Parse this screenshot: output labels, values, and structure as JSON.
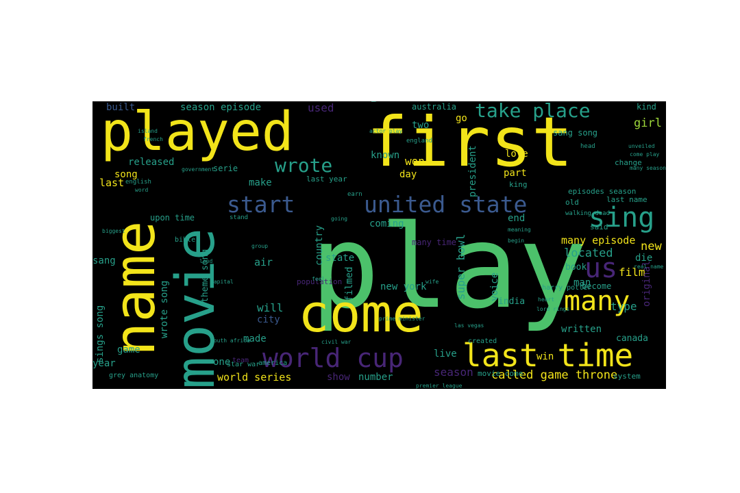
{
  "colors": {
    "background": "#000000",
    "page": "#ffffff",
    "yellow": "#f2e41a",
    "green": "#4cc16b",
    "teal": "#27a08a",
    "blue": "#3b5a8f",
    "purple": "#482677",
    "lime": "#9fd93a"
  },
  "word_cloud": [
    {
      "word": "play",
      "color": "green"
    },
    {
      "word": "first",
      "color": "yellow"
    },
    {
      "word": "played",
      "color": "yellow"
    },
    {
      "word": "name",
      "color": "yellow"
    },
    {
      "word": "movie",
      "color": "teal"
    },
    {
      "word": "come",
      "color": "yellow"
    },
    {
      "word": "last time",
      "color": "yellow"
    },
    {
      "word": "world cup",
      "color": "purple"
    },
    {
      "word": "united state",
      "color": "blue"
    },
    {
      "word": "start",
      "color": "blue"
    },
    {
      "word": "many",
      "color": "yellow"
    },
    {
      "word": "sing",
      "color": "teal"
    },
    {
      "word": "take place",
      "color": "teal"
    },
    {
      "word": "wrote",
      "color": "teal"
    },
    {
      "word": "us",
      "color": "purple"
    },
    {
      "word": "called game throne",
      "color": "yellow"
    },
    {
      "word": "world series",
      "color": "yellow"
    },
    {
      "word": "season episode",
      "color": "teal"
    },
    {
      "word": "built",
      "color": "blue"
    },
    {
      "word": "used",
      "color": "purple"
    },
    {
      "word": "uk",
      "color": "teal"
    },
    {
      "word": "australia",
      "color": "teal"
    },
    {
      "word": "kind",
      "color": "teal"
    },
    {
      "word": "girl",
      "color": "lime"
    },
    {
      "word": "sang song",
      "color": "teal"
    },
    {
      "word": "released",
      "color": "teal"
    },
    {
      "word": "song",
      "color": "yellow"
    },
    {
      "word": "known",
      "color": "teal"
    },
    {
      "word": "won",
      "color": "yellow"
    },
    {
      "word": "two",
      "color": "teal"
    },
    {
      "word": "love",
      "color": "yellow"
    },
    {
      "word": "day",
      "color": "yellow"
    },
    {
      "word": "go",
      "color": "yellow"
    },
    {
      "word": "president",
      "color": "teal"
    },
    {
      "word": "part",
      "color": "yellow"
    },
    {
      "word": "new",
      "color": "yellow"
    },
    {
      "word": "last",
      "color": "yellow"
    },
    {
      "word": "make",
      "color": "teal"
    },
    {
      "word": "last year",
      "color": "teal"
    },
    {
      "word": "upon time",
      "color": "teal"
    },
    {
      "word": "coming",
      "color": "teal"
    },
    {
      "word": "end",
      "color": "teal"
    },
    {
      "word": "old",
      "color": "teal"
    },
    {
      "word": "many episode",
      "color": "yellow"
    },
    {
      "word": "located",
      "color": "teal"
    },
    {
      "word": "die",
      "color": "teal"
    },
    {
      "word": "film",
      "color": "yellow"
    },
    {
      "word": "country",
      "color": "teal"
    },
    {
      "word": "state",
      "color": "teal"
    },
    {
      "word": "super bowl",
      "color": "teal"
    },
    {
      "word": "filmed",
      "color": "teal"
    },
    {
      "word": "new york",
      "color": "teal"
    },
    {
      "word": "air",
      "color": "teal"
    },
    {
      "word": "sang",
      "color": "teal"
    },
    {
      "word": "wrote song",
      "color": "teal"
    },
    {
      "word": "theme song",
      "color": "teal"
    },
    {
      "word": "sings song",
      "color": "teal"
    },
    {
      "word": "will",
      "color": "teal"
    },
    {
      "word": "city",
      "color": "blue"
    },
    {
      "word": "voice",
      "color": "teal"
    },
    {
      "word": "india",
      "color": "teal"
    },
    {
      "word": "original",
      "color": "purple"
    },
    {
      "word": "type",
      "color": "teal"
    },
    {
      "word": "made",
      "color": "teal"
    },
    {
      "word": "written",
      "color": "teal"
    },
    {
      "word": "canada",
      "color": "teal"
    },
    {
      "word": "one",
      "color": "teal"
    },
    {
      "word": "game",
      "color": "teal"
    },
    {
      "word": "year",
      "color": "teal"
    },
    {
      "word": "live",
      "color": "teal"
    },
    {
      "word": "win",
      "color": "yellow"
    },
    {
      "word": "season",
      "color": "purple"
    },
    {
      "word": "number",
      "color": "teal"
    },
    {
      "word": "show",
      "color": "purple"
    },
    {
      "word": "book",
      "color": "teal"
    },
    {
      "word": "man",
      "color": "teal"
    },
    {
      "word": "become",
      "color": "teal"
    },
    {
      "word": "system",
      "color": "teal"
    },
    {
      "word": "grey anatomy",
      "color": "teal"
    },
    {
      "word": "harry potter",
      "color": "teal"
    },
    {
      "word": "population",
      "color": "purple"
    },
    {
      "word": "many time",
      "color": "purple"
    },
    {
      "word": "episodes season",
      "color": "teal"
    },
    {
      "word": "last name",
      "color": "teal"
    },
    {
      "word": "walking dead",
      "color": "teal"
    },
    {
      "word": "said",
      "color": "teal"
    },
    {
      "word": "change",
      "color": "teal"
    },
    {
      "word": "king",
      "color": "teal"
    },
    {
      "word": "serie",
      "color": "teal"
    },
    {
      "word": "star war",
      "color": "teal"
    },
    {
      "word": "america",
      "color": "teal"
    },
    {
      "word": "team",
      "color": "purple"
    },
    {
      "word": "earn",
      "color": "teal"
    },
    {
      "word": "bible",
      "color": "teal"
    },
    {
      "word": "movie come",
      "color": "teal"
    },
    {
      "word": "england",
      "color": "teal"
    },
    {
      "word": "lord rings",
      "color": "teal"
    },
    {
      "word": "las vegas",
      "color": "teal"
    },
    {
      "word": "south africa",
      "color": "teal"
    },
    {
      "word": "civil war",
      "color": "teal"
    },
    {
      "word": "prime minister",
      "color": "teal"
    },
    {
      "word": "premier league",
      "color": "teal"
    },
    {
      "word": "french",
      "color": "teal"
    },
    {
      "word": "island",
      "color": "teal"
    },
    {
      "word": "government",
      "color": "teal"
    },
    {
      "word": "english",
      "color": "teal"
    },
    {
      "word": "word",
      "color": "teal"
    },
    {
      "word": "biggest",
      "color": "teal"
    },
    {
      "word": "capital",
      "color": "teal"
    },
    {
      "word": "wife",
      "color": "teal"
    },
    {
      "word": "group",
      "color": "teal"
    },
    {
      "word": "land",
      "color": "teal"
    },
    {
      "word": "stand",
      "color": "teal"
    },
    {
      "word": "going",
      "color": "teal"
    },
    {
      "word": "meaning",
      "color": "teal"
    },
    {
      "word": "begin",
      "color": "teal"
    },
    {
      "word": "real name",
      "color": "teal"
    },
    {
      "word": "heart",
      "color": "teal"
    },
    {
      "word": "head",
      "color": "teal"
    },
    {
      "word": "unveiled",
      "color": "teal"
    },
    {
      "word": "come play",
      "color": "teal"
    },
    {
      "word": "many season",
      "color": "teal"
    },
    {
      "word": "created",
      "color": "teal"
    },
    {
      "word": "actor play",
      "color": "teal"
    },
    {
      "word": "feel",
      "color": "teal"
    }
  ]
}
